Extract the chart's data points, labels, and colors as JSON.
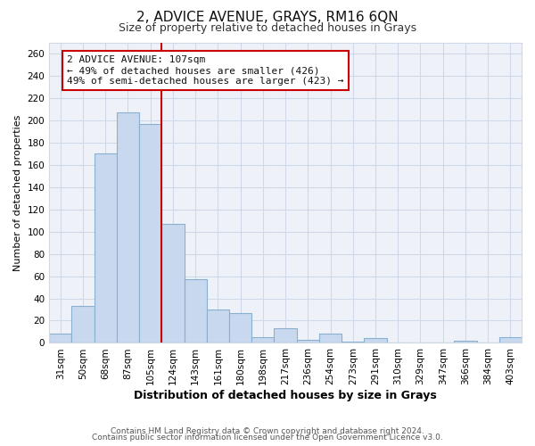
{
  "title": "2, ADVICE AVENUE, GRAYS, RM16 6QN",
  "subtitle": "Size of property relative to detached houses in Grays",
  "xlabel": "Distribution of detached houses by size in Grays",
  "ylabel": "Number of detached properties",
  "categories": [
    "31sqm",
    "50sqm",
    "68sqm",
    "87sqm",
    "105sqm",
    "124sqm",
    "143sqm",
    "161sqm",
    "180sqm",
    "198sqm",
    "217sqm",
    "236sqm",
    "254sqm",
    "273sqm",
    "291sqm",
    "310sqm",
    "329sqm",
    "347sqm",
    "366sqm",
    "384sqm",
    "403sqm"
  ],
  "values": [
    8,
    33,
    170,
    207,
    197,
    107,
    57,
    30,
    27,
    5,
    13,
    3,
    8,
    1,
    4,
    0,
    0,
    0,
    2,
    0,
    5
  ],
  "bar_color": "#c8d8ee",
  "bar_edge_color": "#8ab0d0",
  "vline_color": "#cc0000",
  "annotation_text": "2 ADVICE AVENUE: 107sqm\n← 49% of detached houses are smaller (426)\n49% of semi-detached houses are larger (423) →",
  "annotation_box_color": "#ffffff",
  "annotation_box_edge": "#cc0000",
  "ylim": [
    0,
    270
  ],
  "yticks": [
    0,
    20,
    40,
    60,
    80,
    100,
    120,
    140,
    160,
    180,
    200,
    220,
    240,
    260
  ],
  "footer1": "Contains HM Land Registry data © Crown copyright and database right 2024.",
  "footer2": "Contains public sector information licensed under the Open Government Licence v3.0.",
  "title_fontsize": 11,
  "subtitle_fontsize": 9,
  "xlabel_fontsize": 9,
  "ylabel_fontsize": 8,
  "tick_fontsize": 7.5,
  "annotation_fontsize": 8,
  "footer_fontsize": 6.5,
  "background_color": "#ffffff",
  "grid_color": "#d0d8e8",
  "grid_bg_color": "#eef2f8"
}
